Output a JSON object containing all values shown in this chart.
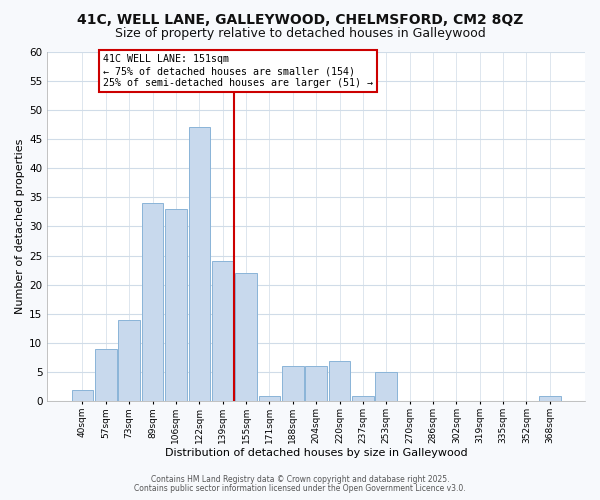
{
  "title": "41C, WELL LANE, GALLEYWOOD, CHELMSFORD, CM2 8QZ",
  "subtitle": "Size of property relative to detached houses in Galleywood",
  "xlabel": "Distribution of detached houses by size in Galleywood",
  "ylabel": "Number of detached properties",
  "bar_labels": [
    "40sqm",
    "57sqm",
    "73sqm",
    "89sqm",
    "106sqm",
    "122sqm",
    "139sqm",
    "155sqm",
    "171sqm",
    "188sqm",
    "204sqm",
    "220sqm",
    "237sqm",
    "253sqm",
    "270sqm",
    "286sqm",
    "302sqm",
    "319sqm",
    "335sqm",
    "352sqm",
    "368sqm"
  ],
  "bar_heights": [
    2,
    9,
    14,
    34,
    33,
    47,
    24,
    22,
    1,
    6,
    6,
    7,
    1,
    5,
    0,
    0,
    0,
    0,
    0,
    0,
    1
  ],
  "bar_color": "#c8d9ed",
  "bar_edge_color": "#8ab4d8",
  "vline_color": "#cc0000",
  "annotation_title": "41C WELL LANE: 151sqm",
  "annotation_line1": "← 75% of detached houses are smaller (154)",
  "annotation_line2": "25% of semi-detached houses are larger (51) →",
  "annotation_box_edge": "#cc0000",
  "ylim": [
    0,
    60
  ],
  "yticks": [
    0,
    5,
    10,
    15,
    20,
    25,
    30,
    35,
    40,
    45,
    50,
    55,
    60
  ],
  "footnote1": "Contains HM Land Registry data © Crown copyright and database right 2025.",
  "footnote2": "Contains public sector information licensed under the Open Government Licence v3.0.",
  "plot_bg_color": "#ffffff",
  "fig_bg_color": "#f7f9fc",
  "grid_color": "#d0dce8",
  "title_fontsize": 10,
  "subtitle_fontsize": 9
}
